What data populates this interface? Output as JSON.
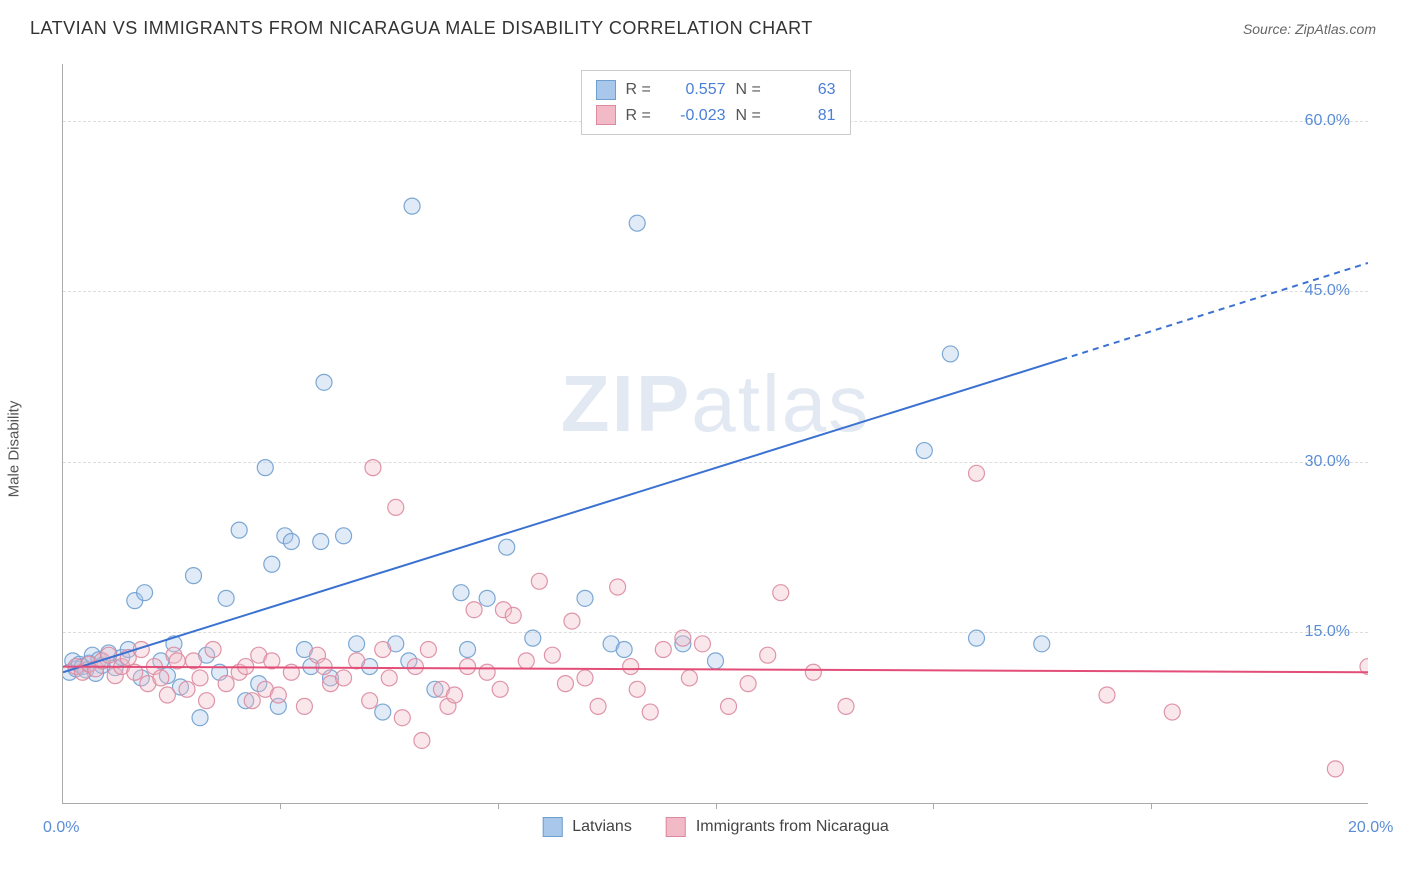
{
  "header": {
    "title": "LATVIAN VS IMMIGRANTS FROM NICARAGUA MALE DISABILITY CORRELATION CHART",
    "source": "Source: ZipAtlas.com"
  },
  "watermark": {
    "bold": "ZIP",
    "light": "atlas"
  },
  "chart": {
    "type": "scatter",
    "y_axis_label": "Male Disability",
    "xlim": [
      0,
      20
    ],
    "ylim": [
      0,
      65
    ],
    "x_ticks": [
      0,
      3.33,
      6.67,
      10,
      13.33,
      16.67,
      20
    ],
    "x_tick_labels": {
      "0": "0.0%",
      "20": "20.0%"
    },
    "y_ticks": [
      15,
      30,
      45,
      60
    ],
    "y_tick_labels": [
      "15.0%",
      "30.0%",
      "45.0%",
      "60.0%"
    ],
    "gridline_color": "#dddddd",
    "background_color": "#ffffff",
    "axis_color": "#aaaaaa",
    "marker_radius": 8,
    "series": [
      {
        "id": "latvians",
        "label": "Latvians",
        "fill_color": "#a9c7ea",
        "stroke_color": "#6f9fce",
        "line_color": "#3b72d1",
        "R": "0.557",
        "N": "63",
        "trend": {
          "x1": 0,
          "y1": 11.5,
          "x2": 15.3,
          "y2": 39.0,
          "dash_x2": 20,
          "dash_y2": 47.5
        },
        "points": [
          [
            0.1,
            11.5
          ],
          [
            0.15,
            12.5
          ],
          [
            0.2,
            11.8
          ],
          [
            0.25,
            12.2
          ],
          [
            0.3,
            12.0
          ],
          [
            0.35,
            11.7
          ],
          [
            0.4,
            12.3
          ],
          [
            0.45,
            13.0
          ],
          [
            0.5,
            11.4
          ],
          [
            0.55,
            12.6
          ],
          [
            0.6,
            12.1
          ],
          [
            0.7,
            13.2
          ],
          [
            0.8,
            11.9
          ],
          [
            0.9,
            12.8
          ],
          [
            1.0,
            13.5
          ],
          [
            1.1,
            17.8
          ],
          [
            1.2,
            11.0
          ],
          [
            1.25,
            18.5
          ],
          [
            1.5,
            12.5
          ],
          [
            1.6,
            11.2
          ],
          [
            1.7,
            14.0
          ],
          [
            1.8,
            10.2
          ],
          [
            2.0,
            20.0
          ],
          [
            2.1,
            7.5
          ],
          [
            2.2,
            13.0
          ],
          [
            2.4,
            11.5
          ],
          [
            2.5,
            18.0
          ],
          [
            2.7,
            24.0
          ],
          [
            2.8,
            9.0
          ],
          [
            3.0,
            10.5
          ],
          [
            3.1,
            29.5
          ],
          [
            3.2,
            21.0
          ],
          [
            3.3,
            8.5
          ],
          [
            3.4,
            23.5
          ],
          [
            3.5,
            23.0
          ],
          [
            3.7,
            13.5
          ],
          [
            3.8,
            12.0
          ],
          [
            3.95,
            23.0
          ],
          [
            4.0,
            37.0
          ],
          [
            4.1,
            11.0
          ],
          [
            4.3,
            23.5
          ],
          [
            4.5,
            14.0
          ],
          [
            4.7,
            12.0
          ],
          [
            4.9,
            8.0
          ],
          [
            5.1,
            14.0
          ],
          [
            5.3,
            12.5
          ],
          [
            5.35,
            52.5
          ],
          [
            5.7,
            10.0
          ],
          [
            6.1,
            18.5
          ],
          [
            6.2,
            13.5
          ],
          [
            6.5,
            18.0
          ],
          [
            6.8,
            22.5
          ],
          [
            7.2,
            14.5
          ],
          [
            8.0,
            18.0
          ],
          [
            8.4,
            14.0
          ],
          [
            8.6,
            13.5
          ],
          [
            8.8,
            51.0
          ],
          [
            9.5,
            14.0
          ],
          [
            10.0,
            12.5
          ],
          [
            13.2,
            31.0
          ],
          [
            13.6,
            39.5
          ],
          [
            14.0,
            14.5
          ],
          [
            15.0,
            14.0
          ]
        ]
      },
      {
        "id": "nicaragua",
        "label": "Immigrants from Nicaragua",
        "fill_color": "#f2b9c7",
        "stroke_color": "#db8aa0",
        "line_color": "#e24e78",
        "R": "-0.023",
        "N": "81",
        "trend": {
          "x1": 0,
          "y1": 12.0,
          "x2": 20,
          "y2": 11.5
        },
        "points": [
          [
            0.2,
            12.0
          ],
          [
            0.3,
            11.5
          ],
          [
            0.4,
            12.2
          ],
          [
            0.5,
            11.8
          ],
          [
            0.6,
            12.5
          ],
          [
            0.7,
            13.0
          ],
          [
            0.8,
            11.2
          ],
          [
            0.9,
            12.0
          ],
          [
            1.0,
            12.8
          ],
          [
            1.1,
            11.5
          ],
          [
            1.2,
            13.5
          ],
          [
            1.3,
            10.5
          ],
          [
            1.4,
            12.0
          ],
          [
            1.5,
            11.0
          ],
          [
            1.6,
            9.5
          ],
          [
            1.7,
            13.0
          ],
          [
            1.75,
            12.5
          ],
          [
            1.9,
            10.0
          ],
          [
            2.0,
            12.5
          ],
          [
            2.1,
            11.0
          ],
          [
            2.2,
            9.0
          ],
          [
            2.3,
            13.5
          ],
          [
            2.5,
            10.5
          ],
          [
            2.7,
            11.5
          ],
          [
            2.8,
            12.0
          ],
          [
            2.9,
            9.0
          ],
          [
            3.0,
            13.0
          ],
          [
            3.1,
            10.0
          ],
          [
            3.2,
            12.5
          ],
          [
            3.3,
            9.5
          ],
          [
            3.5,
            11.5
          ],
          [
            3.7,
            8.5
          ],
          [
            3.9,
            13.0
          ],
          [
            4.0,
            12.0
          ],
          [
            4.1,
            10.5
          ],
          [
            4.3,
            11.0
          ],
          [
            4.5,
            12.5
          ],
          [
            4.7,
            9.0
          ],
          [
            4.75,
            29.5
          ],
          [
            4.9,
            13.5
          ],
          [
            5.0,
            11.0
          ],
          [
            5.1,
            26.0
          ],
          [
            5.2,
            7.5
          ],
          [
            5.4,
            12.0
          ],
          [
            5.5,
            5.5
          ],
          [
            5.6,
            13.5
          ],
          [
            5.8,
            10.0
          ],
          [
            5.9,
            8.5
          ],
          [
            6.0,
            9.5
          ],
          [
            6.2,
            12.0
          ],
          [
            6.3,
            17.0
          ],
          [
            6.5,
            11.5
          ],
          [
            6.7,
            10.0
          ],
          [
            6.75,
            17.0
          ],
          [
            6.9,
            16.5
          ],
          [
            7.1,
            12.5
          ],
          [
            7.3,
            19.5
          ],
          [
            7.5,
            13.0
          ],
          [
            7.7,
            10.5
          ],
          [
            7.8,
            16.0
          ],
          [
            8.0,
            11.0
          ],
          [
            8.2,
            8.5
          ],
          [
            8.5,
            19.0
          ],
          [
            8.7,
            12.0
          ],
          [
            8.8,
            10.0
          ],
          [
            9.0,
            8.0
          ],
          [
            9.2,
            13.5
          ],
          [
            9.5,
            14.5
          ],
          [
            9.6,
            11.0
          ],
          [
            9.8,
            14.0
          ],
          [
            10.2,
            8.5
          ],
          [
            10.5,
            10.5
          ],
          [
            10.8,
            13.0
          ],
          [
            11.0,
            18.5
          ],
          [
            11.5,
            11.5
          ],
          [
            12.0,
            8.5
          ],
          [
            14.0,
            29.0
          ],
          [
            16.0,
            9.5
          ],
          [
            17.0,
            8.0
          ],
          [
            19.5,
            3.0
          ],
          [
            20.0,
            12.0
          ]
        ]
      }
    ]
  },
  "legend_top": {
    "r_label": "R =",
    "n_label": "N ="
  }
}
